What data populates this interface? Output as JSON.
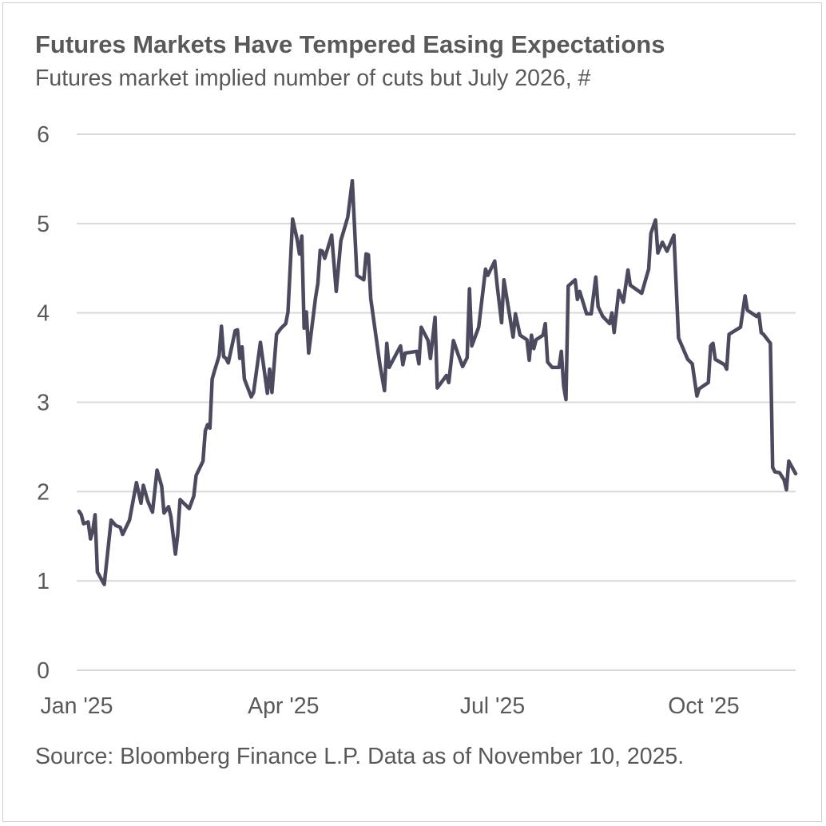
{
  "chart_data": {
    "type": "line",
    "title": "Futures Markets Have Tempered Easing Expectations",
    "subtitle": "Futures market implied number of cuts but July 2026, #",
    "xlabel": "",
    "ylabel": "",
    "ylim": [
      0,
      6
    ],
    "xlim": [
      "2025-01-01",
      "2025-11-10"
    ],
    "y_ticks": [
      "0",
      "1",
      "2",
      "3",
      "4",
      "5",
      "6"
    ],
    "x_ticks": [
      {
        "date": "2025-01-01",
        "label": "Jan '25"
      },
      {
        "date": "2025-04-01",
        "label": "Apr '25"
      },
      {
        "date": "2025-07-01",
        "label": "Jul '25"
      },
      {
        "date": "2025-10-01",
        "label": "Oct '25"
      }
    ],
    "grid": "horizontal",
    "line_color": "#4b4a5e",
    "grid_color": "#d9d9d9",
    "series": [
      {
        "points": [
          [
            "2025-01-02",
            1.78
          ],
          [
            "2025-01-03",
            1.74
          ],
          [
            "2025-01-04",
            1.64
          ],
          [
            "2025-01-06",
            1.66
          ],
          [
            "2025-01-07",
            1.47
          ],
          [
            "2025-01-08",
            1.56
          ],
          [
            "2025-01-09",
            1.74
          ],
          [
            "2025-01-10",
            1.1
          ],
          [
            "2025-01-13",
            0.96
          ],
          [
            "2025-01-16",
            1.68
          ],
          [
            "2025-01-18",
            1.62
          ],
          [
            "2025-01-20",
            1.6
          ],
          [
            "2025-01-21",
            1.52
          ],
          [
            "2025-01-24",
            1.68
          ],
          [
            "2025-01-27",
            2.1
          ],
          [
            "2025-01-29",
            1.87
          ],
          [
            "2025-01-30",
            2.07
          ],
          [
            "2025-02-01",
            1.89
          ],
          [
            "2025-02-03",
            1.77
          ],
          [
            "2025-02-05",
            2.24
          ],
          [
            "2025-02-07",
            2.06
          ],
          [
            "2025-02-08",
            1.76
          ],
          [
            "2025-02-10",
            1.83
          ],
          [
            "2025-02-11",
            1.72
          ],
          [
            "2025-02-13",
            1.3
          ],
          [
            "2025-02-14",
            1.52
          ],
          [
            "2025-02-15",
            1.91
          ],
          [
            "2025-02-19",
            1.81
          ],
          [
            "2025-02-21",
            1.95
          ],
          [
            "2025-02-22",
            2.18
          ],
          [
            "2025-02-25",
            2.34
          ],
          [
            "2025-02-26",
            2.68
          ],
          [
            "2025-02-27",
            2.75
          ],
          [
            "2025-02-28",
            2.71
          ],
          [
            "2025-03-01",
            3.26
          ],
          [
            "2025-03-02",
            3.35
          ],
          [
            "2025-03-04",
            3.52
          ],
          [
            "2025-03-05",
            3.85
          ],
          [
            "2025-03-06",
            3.51
          ],
          [
            "2025-03-07",
            3.49
          ],
          [
            "2025-03-08",
            3.44
          ],
          [
            "2025-03-11",
            3.8
          ],
          [
            "2025-03-12",
            3.81
          ],
          [
            "2025-03-13",
            3.49
          ],
          [
            "2025-03-14",
            3.62
          ],
          [
            "2025-03-15",
            3.26
          ],
          [
            "2025-03-18",
            3.06
          ],
          [
            "2025-03-19",
            3.11
          ],
          [
            "2025-03-22",
            3.67
          ],
          [
            "2025-03-25",
            3.1
          ],
          [
            "2025-03-26",
            3.37
          ],
          [
            "2025-03-27",
            3.11
          ],
          [
            "2025-03-29",
            3.76
          ],
          [
            "2025-03-31",
            3.83
          ],
          [
            "2025-04-02",
            3.88
          ],
          [
            "2025-04-03",
            4.01
          ],
          [
            "2025-04-05",
            5.05
          ],
          [
            "2025-04-07",
            4.82
          ],
          [
            "2025-04-08",
            4.66
          ],
          [
            "2025-04-09",
            4.86
          ],
          [
            "2025-04-10",
            3.83
          ],
          [
            "2025-04-11",
            4.01
          ],
          [
            "2025-04-12",
            3.55
          ],
          [
            "2025-04-15",
            4.17
          ],
          [
            "2025-04-16",
            4.33
          ],
          [
            "2025-04-17",
            4.7
          ],
          [
            "2025-04-18",
            4.69
          ],
          [
            "2025-04-19",
            4.61
          ],
          [
            "2025-04-22",
            4.87
          ],
          [
            "2025-04-24",
            4.24
          ],
          [
            "2025-04-26",
            4.81
          ],
          [
            "2025-04-29",
            5.07
          ],
          [
            "2025-05-01",
            5.48
          ],
          [
            "2025-05-03",
            4.42
          ],
          [
            "2025-05-06",
            4.37
          ],
          [
            "2025-05-07",
            4.66
          ],
          [
            "2025-05-08",
            4.65
          ],
          [
            "2025-05-09",
            4.16
          ],
          [
            "2025-05-13",
            3.42
          ],
          [
            "2025-05-15",
            3.13
          ],
          [
            "2025-05-16",
            3.66
          ],
          [
            "2025-05-17",
            3.39
          ],
          [
            "2025-05-22",
            3.63
          ],
          [
            "2025-05-23",
            3.42
          ],
          [
            "2025-05-24",
            3.55
          ],
          [
            "2025-05-29",
            3.57
          ],
          [
            "2025-05-30",
            3.43
          ],
          [
            "2025-05-31",
            3.84
          ],
          [
            "2025-06-03",
            3.69
          ],
          [
            "2025-06-04",
            3.49
          ],
          [
            "2025-06-06",
            3.95
          ],
          [
            "2025-06-07",
            3.16
          ],
          [
            "2025-06-11",
            3.3
          ],
          [
            "2025-06-12",
            3.22
          ],
          [
            "2025-06-14",
            3.69
          ],
          [
            "2025-06-16",
            3.54
          ],
          [
            "2025-06-18",
            3.4
          ],
          [
            "2025-06-20",
            3.5
          ],
          [
            "2025-06-21",
            4.27
          ],
          [
            "2025-06-22",
            3.63
          ],
          [
            "2025-06-25",
            3.84
          ],
          [
            "2025-06-28",
            4.49
          ],
          [
            "2025-06-29",
            4.42
          ],
          [
            "2025-07-02",
            4.58
          ],
          [
            "2025-07-03",
            4.32
          ],
          [
            "2025-07-05",
            3.89
          ],
          [
            "2025-07-06",
            4.37
          ],
          [
            "2025-07-10",
            3.73
          ],
          [
            "2025-07-11",
            3.99
          ],
          [
            "2025-07-13",
            3.75
          ],
          [
            "2025-07-16",
            3.7
          ],
          [
            "2025-07-17",
            3.47
          ],
          [
            "2025-07-18",
            3.75
          ],
          [
            "2025-07-19",
            3.6
          ],
          [
            "2025-07-20",
            3.7
          ],
          [
            "2025-07-23",
            3.75
          ],
          [
            "2025-07-24",
            3.88
          ],
          [
            "2025-07-25",
            3.45
          ],
          [
            "2025-07-27",
            3.39
          ],
          [
            "2025-07-30",
            3.39
          ],
          [
            "2025-07-31",
            3.57
          ],
          [
            "2025-08-01",
            3.18
          ],
          [
            "2025-08-02",
            3.03
          ],
          [
            "2025-08-03",
            4.3
          ],
          [
            "2025-08-06",
            4.37
          ],
          [
            "2025-08-07",
            4.15
          ],
          [
            "2025-08-08",
            4.24
          ],
          [
            "2025-08-11",
            3.99
          ],
          [
            "2025-08-13",
            3.99
          ],
          [
            "2025-08-15",
            4.4
          ],
          [
            "2025-08-16",
            4.07
          ],
          [
            "2025-08-18",
            3.96
          ],
          [
            "2025-08-21",
            3.88
          ],
          [
            "2025-08-22",
            4.0
          ],
          [
            "2025-08-23",
            3.78
          ],
          [
            "2025-08-25",
            4.25
          ],
          [
            "2025-08-27",
            4.12
          ],
          [
            "2025-08-29",
            4.48
          ],
          [
            "2025-08-30",
            4.31
          ],
          [
            "2025-09-04",
            4.22
          ],
          [
            "2025-09-07",
            4.49
          ],
          [
            "2025-09-08",
            4.89
          ],
          [
            "2025-09-10",
            5.04
          ],
          [
            "2025-09-11",
            4.67
          ],
          [
            "2025-09-13",
            4.79
          ],
          [
            "2025-09-15",
            4.69
          ],
          [
            "2025-09-18",
            4.87
          ],
          [
            "2025-09-20",
            3.72
          ],
          [
            "2025-09-23",
            3.54
          ],
          [
            "2025-09-24",
            3.48
          ],
          [
            "2025-09-26",
            3.43
          ],
          [
            "2025-09-28",
            3.07
          ],
          [
            "2025-09-29",
            3.15
          ],
          [
            "2025-10-03",
            3.22
          ],
          [
            "2025-10-04",
            3.63
          ],
          [
            "2025-10-05",
            3.66
          ],
          [
            "2025-10-06",
            3.48
          ],
          [
            "2025-10-10",
            3.42
          ],
          [
            "2025-10-11",
            3.37
          ],
          [
            "2025-10-12",
            3.76
          ],
          [
            "2025-10-17",
            3.84
          ],
          [
            "2025-10-19",
            4.19
          ],
          [
            "2025-10-20",
            4.03
          ],
          [
            "2025-10-24",
            3.96
          ],
          [
            "2025-10-25",
            3.99
          ],
          [
            "2025-10-26",
            3.78
          ],
          [
            "2025-10-27",
            3.76
          ],
          [
            "2025-10-30",
            3.66
          ],
          [
            "2025-10-31",
            2.27
          ],
          [
            "2025-11-01",
            2.22
          ],
          [
            "2025-11-03",
            2.21
          ],
          [
            "2025-11-05",
            2.13
          ],
          [
            "2025-11-06",
            2.02
          ],
          [
            "2025-11-07",
            2.34
          ],
          [
            "2025-11-10",
            2.2
          ]
        ]
      }
    ],
    "source": "Source: Bloomberg Finance L.P. Data as of November 10, 2025."
  }
}
